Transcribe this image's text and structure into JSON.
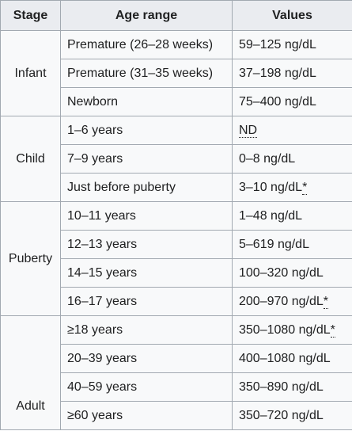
{
  "headers": [
    "Stage",
    "Age range",
    "Values"
  ],
  "groups": {
    "infant": {
      "stage": "Infant",
      "rows": [
        {
          "age": "Premature (26–28 weeks)",
          "value": "59–125 ng/dL",
          "mark": ""
        },
        {
          "age": "Premature (31–35 weeks)",
          "value": "37–198 ng/dL",
          "mark": ""
        },
        {
          "age": "Newborn",
          "value": "75–400 ng/dL",
          "mark": ""
        }
      ]
    },
    "child": {
      "stage": "Child",
      "rows": [
        {
          "age": "1–6 years",
          "value": "ND",
          "mark": ""
        },
        {
          "age": "7–9 years",
          "value": "0–8 ng/dL",
          "mark": ""
        },
        {
          "age": "Just before puberty",
          "value": "3–10 ng/dL",
          "mark": "*"
        }
      ]
    },
    "puberty": {
      "stage": "Puberty",
      "rows": [
        {
          "age": "10–11 years",
          "value": "1–48 ng/dL",
          "mark": ""
        },
        {
          "age": "12–13 years",
          "value": "5–619 ng/dL",
          "mark": ""
        },
        {
          "age": "14–15 years",
          "value": "100–320 ng/dL",
          "mark": ""
        },
        {
          "age": "16–17 years",
          "value": "200–970 ng/dL",
          "mark": "*"
        }
      ]
    },
    "adult": {
      "stage": "Adult",
      "rows": [
        {
          "age": "≥18 years",
          "value": "350–1080 ng/dL",
          "mark": "*"
        },
        {
          "age": "20–39 years",
          "value": "400–1080 ng/dL",
          "mark": ""
        },
        {
          "age": "40–59 years",
          "value": "350–890 ng/dL",
          "mark": ""
        },
        {
          "age": "≥60 years",
          "value": "350–720 ng/dL",
          "mark": ""
        }
      ]
    }
  }
}
